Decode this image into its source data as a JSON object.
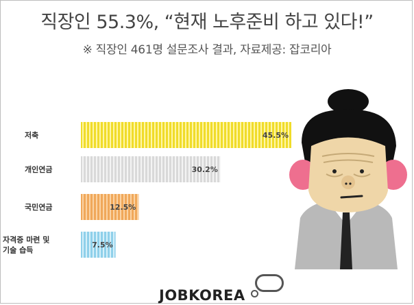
{
  "title": "직장인  55.3%, “현재 노후준비 하고 있다!”",
  "subtitle": "※ 직장인 461명 설문조사 결과, 자료제공: 잡코리아",
  "logo": "JOBKOREA",
  "chart_data": {
    "type": "bar",
    "orientation": "horizontal",
    "categories": [
      "저축",
      "개인연금",
      "국민연금",
      "자격증 마련 및 기술 습득"
    ],
    "category_lines": [
      [
        "저축"
      ],
      [
        "개인연금"
      ],
      [
        "국민연금"
      ],
      [
        "자격증 마련 및",
        "기술 습득"
      ]
    ],
    "values": [
      45.5,
      30.2,
      12.5,
      7.5
    ],
    "value_labels": [
      "45.5%",
      "30.2%",
      "12.5%",
      "7.5%"
    ],
    "colors": [
      "#f0dc2a",
      "#d9d9d9",
      "#f0a85a",
      "#8fd0ea"
    ],
    "stripe_colors": [
      "#fff6a8",
      "#f4f4f4",
      "#fbd3a4",
      "#d6f0fa"
    ],
    "xlim": [
      0,
      45.5
    ],
    "grid": false,
    "legend": "none"
  },
  "character": {
    "hair": "#111111",
    "skin": "#efd6a8",
    "cheek": "#ee6f8f",
    "suit": "#b9b9b9",
    "shirt": "#ffffff",
    "tie": "#222222"
  }
}
